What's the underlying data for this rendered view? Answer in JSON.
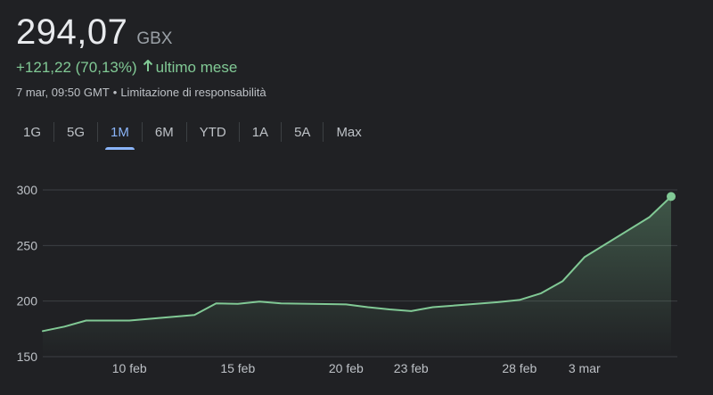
{
  "quote": {
    "price": "294,07",
    "currency": "GBX",
    "change": "+121,22 (70,13%)",
    "change_period": "ultimo mese",
    "timestamp": "7 mar, 09:50 GMT",
    "disclaimer": "Limitazione di responsabilità",
    "up_color": "#81c995"
  },
  "tabs": [
    {
      "label": "1G",
      "active": false
    },
    {
      "label": "5G",
      "active": false
    },
    {
      "label": "1M",
      "active": true
    },
    {
      "label": "6M",
      "active": false
    },
    {
      "label": "YTD",
      "active": false
    },
    {
      "label": "1A",
      "active": false
    },
    {
      "label": "5A",
      "active": false
    },
    {
      "label": "Max",
      "active": false
    }
  ],
  "chart_data": {
    "type": "area",
    "title": "",
    "xlabel": "",
    "ylabel": "",
    "ylim": [
      150,
      300
    ],
    "y_ticks": [
      300,
      250,
      200,
      150
    ],
    "x_ticks": [
      "10 feb",
      "15 feb",
      "20 feb",
      "23 feb",
      "28 feb",
      "3 mar"
    ],
    "grid": true,
    "line_color": "#81c995",
    "series": [
      {
        "x": [
          "6 feb",
          "7 feb",
          "8 feb",
          "10 feb",
          "13 feb",
          "14 feb",
          "15 feb",
          "16 feb",
          "17 feb",
          "20 feb",
          "21 feb",
          "22 feb",
          "23 feb",
          "24 feb",
          "27 feb",
          "28 feb",
          "1 mar",
          "2 mar",
          "3 mar",
          "6 mar",
          "7 mar"
        ],
        "values": [
          173,
          177,
          182.5,
          182.5,
          187.5,
          198,
          197.5,
          199.5,
          198,
          197,
          194.5,
          192.5,
          191,
          194.5,
          199,
          201,
          207,
          218,
          239.5,
          275.5,
          294.07
        ]
      }
    ]
  }
}
